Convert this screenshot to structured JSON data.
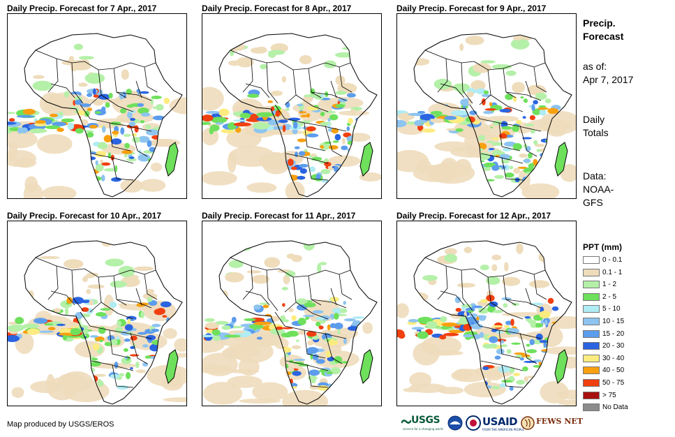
{
  "panels": [
    {
      "title": "Daily Precip. Forecast for 7 Apr., 2017"
    },
    {
      "title": "Daily Precip. Forecast for 8 Apr., 2017"
    },
    {
      "title": "Daily Precip. Forecast for 9 Apr., 2017"
    },
    {
      "title": "Daily Precip. Forecast for 10 Apr., 2017"
    },
    {
      "title": "Daily Precip. Forecast for 11 Apr., 2017"
    },
    {
      "title": "Daily Precip. Forecast for 12 Apr., 2017"
    }
  ],
  "sidebar": {
    "title_line1": "Precip.",
    "title_line2": "Forecast",
    "asof_line1": "as of:",
    "asof_line2": "Apr 7, 2017",
    "totals_line1": "Daily",
    "totals_line2": "Totals",
    "data_line1": "Data:",
    "data_line2": "NOAA-",
    "data_line3": "GFS"
  },
  "legend": {
    "title": "PPT (mm)",
    "items": [
      {
        "label": "0 - 0.1",
        "color": "#ffffff"
      },
      {
        "label": "0.1 - 1",
        "color": "#eedcbb"
      },
      {
        "label": "1 - 2",
        "color": "#b4f0a8"
      },
      {
        "label": "2 - 5",
        "color": "#6ee05c"
      },
      {
        "label": "5 - 10",
        "color": "#b0ecf4"
      },
      {
        "label": "10 - 15",
        "color": "#8ec4f0"
      },
      {
        "label": "15 - 20",
        "color": "#5c9cec"
      },
      {
        "label": "20 - 30",
        "color": "#2a64e0"
      },
      {
        "label": "30 - 40",
        "color": "#fcec80"
      },
      {
        "label": "40 - 50",
        "color": "#f8a010"
      },
      {
        "label": "50 - 75",
        "color": "#f04010"
      },
      {
        "label": "> 75",
        "color": "#a81010"
      },
      {
        "label": "No Data",
        "color": "#8c8c8c"
      }
    ]
  },
  "credit": "Map produced by USGS/EROS",
  "logos": {
    "usgs": "USGS",
    "usgs_tag": "science for a changing world",
    "usaid": "USAID",
    "usaid_tag": "FROM THE AMERICAN PEOPLE",
    "fewsnet": "FEWS NET"
  }
}
